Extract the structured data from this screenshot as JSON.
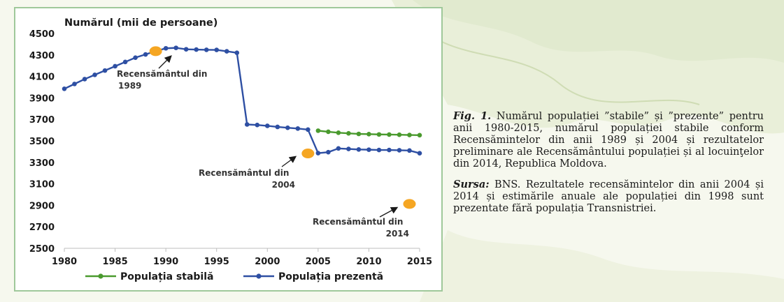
{
  "caption": {
    "fig_label": "Fig. 1.",
    "fig_text": "Numărul populației ”stabile” și ”prezente” pentru anii 1980-2015, numărul populației stabile conform Recensămintelor din anii 1989 și 2004 și rezultatelor preliminare ale Recensământului populației și al locuinţelor din 2014, Republica Moldova.",
    "source_label": "Sursa:",
    "source_text": "BNS. Rezultatele recensămintelor din anii 2004 și 2014 și estimările anuale ale populației din 1998 sunt prezentate fără populația Transnistriei."
  },
  "chart_data": {
    "type": "line",
    "title": "Numărul (mii de persoane)",
    "xlabel": "",
    "ylabel": "",
    "xlim": [
      1980,
      2015
    ],
    "ylim": [
      2500,
      4500
    ],
    "x_ticks": [
      1980,
      1985,
      1990,
      1995,
      2000,
      2005,
      2010,
      2015
    ],
    "y_ticks": [
      2500,
      2700,
      2900,
      3100,
      3300,
      3500,
      3700,
      3900,
      4100,
      4300,
      4500
    ],
    "grid": false,
    "legend_position": "bottom",
    "series": [
      {
        "name": "Populația stabilă",
        "color": "#4a9a2e",
        "points": [
          [
            2005,
            3595
          ],
          [
            2006,
            3585
          ],
          [
            2007,
            3576
          ],
          [
            2008,
            3570
          ],
          [
            2009,
            3565
          ],
          [
            2010,
            3563
          ],
          [
            2011,
            3560
          ],
          [
            2012,
            3559
          ],
          [
            2013,
            3557
          ],
          [
            2014,
            3555
          ],
          [
            2015,
            3553
          ]
        ]
      },
      {
        "name": "Populația prezentă",
        "color": "#2e4fa3",
        "points": [
          [
            1980,
            3985
          ],
          [
            1981,
            4030
          ],
          [
            1982,
            4075
          ],
          [
            1983,
            4115
          ],
          [
            1984,
            4155
          ],
          [
            1985,
            4195
          ],
          [
            1986,
            4235
          ],
          [
            1987,
            4275
          ],
          [
            1988,
            4305
          ],
          [
            1989,
            4335
          ],
          [
            1990,
            4362
          ],
          [
            1991,
            4366
          ],
          [
            1992,
            4353
          ],
          [
            1993,
            4350
          ],
          [
            1994,
            4348
          ],
          [
            1995,
            4347
          ],
          [
            1996,
            4334
          ],
          [
            1997,
            4320
          ],
          [
            1998,
            3653
          ],
          [
            1999,
            3648
          ],
          [
            2000,
            3640
          ],
          [
            2001,
            3630
          ],
          [
            2002,
            3622
          ],
          [
            2003,
            3615
          ],
          [
            2004,
            3605
          ],
          [
            2005,
            3386
          ],
          [
            2006,
            3395
          ],
          [
            2007,
            3430
          ],
          [
            2008,
            3425
          ],
          [
            2009,
            3420
          ],
          [
            2010,
            3418
          ],
          [
            2011,
            3415
          ],
          [
            2012,
            3415
          ],
          [
            2013,
            3413
          ],
          [
            2014,
            3410
          ],
          [
            2015,
            3385
          ]
        ]
      }
    ],
    "census_points": {
      "color": "#f5a623",
      "points": [
        [
          1989,
          4335
        ],
        [
          2004,
          3383
        ],
        [
          2014,
          2913
        ]
      ]
    },
    "annotations": [
      {
        "lines": [
          "Recensământul din",
          "1989"
        ],
        "x": 1989,
        "y": 4335,
        "anchor": "below-left"
      },
      {
        "lines": [
          "Recensământul din",
          "2004"
        ],
        "x": 2004,
        "y": 3383,
        "anchor": "below-left"
      },
      {
        "lines": [
          "Recensământul din",
          "2014"
        ],
        "x": 2014,
        "y": 2913,
        "anchor": "below-left"
      }
    ]
  }
}
